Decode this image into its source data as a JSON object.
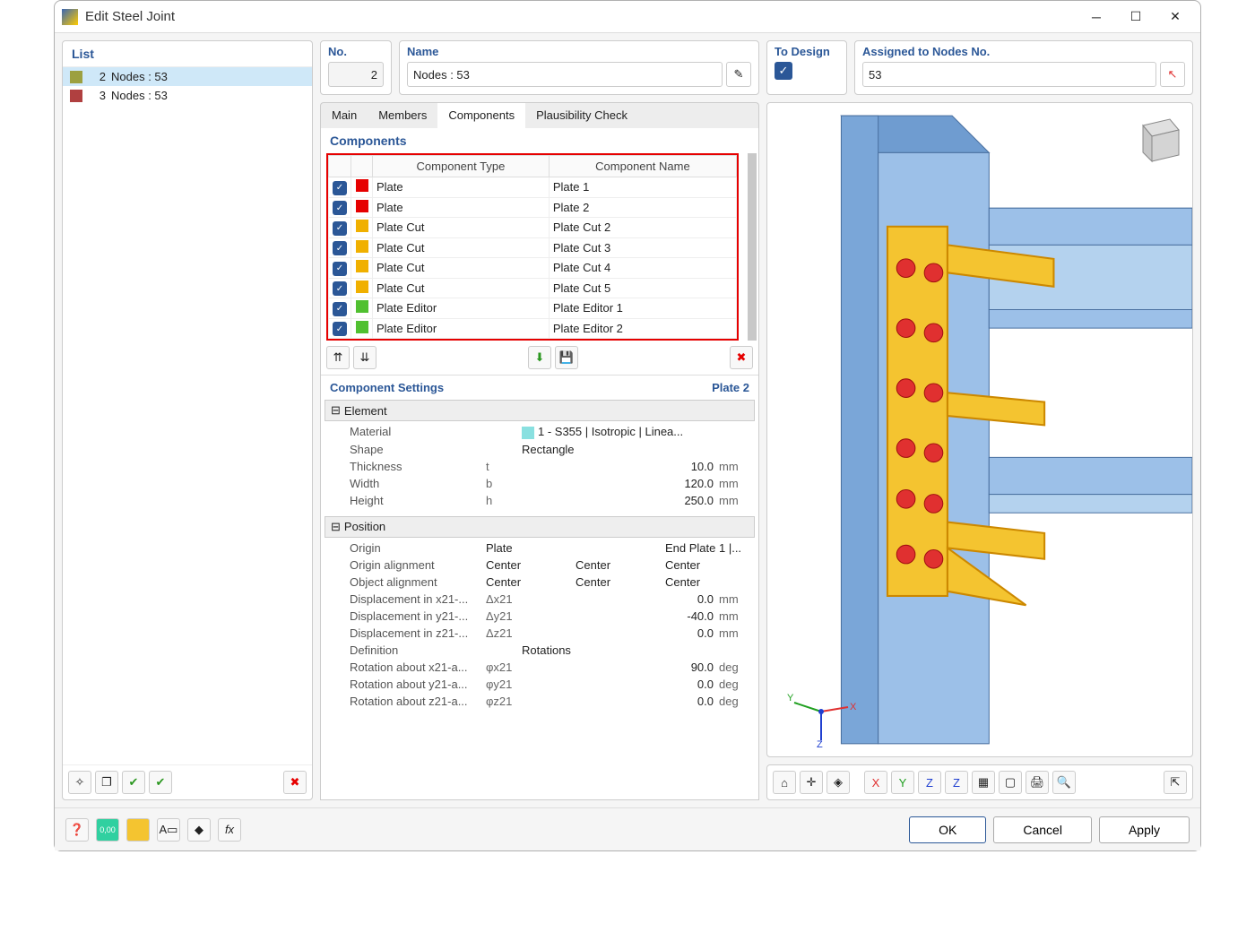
{
  "window": {
    "title": "Edit Steel Joint"
  },
  "list": {
    "header": "List",
    "items": [
      {
        "num": "2",
        "label": "Nodes : 53",
        "color": "#9ca040",
        "selected": true
      },
      {
        "num": "3",
        "label": "Nodes : 53",
        "color": "#b04040",
        "selected": false
      }
    ]
  },
  "fields": {
    "no_label": "No.",
    "no_value": "2",
    "name_label": "Name",
    "name_value": "Nodes : 53",
    "todesign_label": "To Design",
    "assigned_label": "Assigned to Nodes No.",
    "assigned_value": "53"
  },
  "tabs": {
    "items": [
      "Main",
      "Members",
      "Components",
      "Plausibility Check"
    ],
    "active": 2
  },
  "components": {
    "header": "Components",
    "col_type": "Component Type",
    "col_name": "Component Name",
    "rows": [
      {
        "color": "#e60000",
        "type": "Plate",
        "name": "Plate 1"
      },
      {
        "color": "#e60000",
        "type": "Plate",
        "name": "Plate 2"
      },
      {
        "color": "#f0b000",
        "type": "Plate Cut",
        "name": "Plate Cut 2"
      },
      {
        "color": "#f0b000",
        "type": "Plate Cut",
        "name": "Plate Cut 3"
      },
      {
        "color": "#f0b000",
        "type": "Plate Cut",
        "name": "Plate Cut 4"
      },
      {
        "color": "#f0b000",
        "type": "Plate Cut",
        "name": "Plate Cut 5"
      },
      {
        "color": "#50c030",
        "type": "Plate Editor",
        "name": "Plate Editor 1"
      },
      {
        "color": "#50c030",
        "type": "Plate Editor",
        "name": "Plate Editor 2"
      }
    ]
  },
  "settings": {
    "header": "Component Settings",
    "for": "Plate 2",
    "element_label": "Element",
    "position_label": "Position",
    "element": [
      {
        "label": "Material",
        "value": "1 - S355 | Isotropic | Linea...",
        "swatch": "#89e0e0"
      },
      {
        "label": "Shape",
        "value": "Rectangle"
      },
      {
        "label": "Thickness",
        "sym": "t",
        "value": "10.0",
        "unit": "mm"
      },
      {
        "label": "Width",
        "sym": "b",
        "value": "120.0",
        "unit": "mm"
      },
      {
        "label": "Height",
        "sym": "h",
        "value": "250.0",
        "unit": "mm"
      }
    ],
    "position": [
      {
        "label": "Origin",
        "cols": [
          "Plate",
          "",
          "End Plate 1 |..."
        ]
      },
      {
        "label": "Origin alignment",
        "cols": [
          "Center",
          "Center",
          "Center"
        ]
      },
      {
        "label": "Object alignment",
        "cols": [
          "Center",
          "Center",
          "Center"
        ]
      },
      {
        "label": "Displacement in x21-...",
        "sym": "Δx21",
        "value": "0.0",
        "unit": "mm"
      },
      {
        "label": "Displacement in y21-...",
        "sym": "Δy21",
        "value": "-40.0",
        "unit": "mm"
      },
      {
        "label": "Displacement in z21-...",
        "sym": "Δz21",
        "value": "0.0",
        "unit": "mm"
      },
      {
        "label": "Definition",
        "value": "Rotations",
        "left": true
      },
      {
        "label": "Rotation about x21-a...",
        "sym": "φx21",
        "value": "90.0",
        "unit": "deg"
      },
      {
        "label": "Rotation about y21-a...",
        "sym": "φy21",
        "value": "0.0",
        "unit": "deg"
      },
      {
        "label": "Rotation about z21-a...",
        "sym": "φz21",
        "value": "0.0",
        "unit": "deg"
      }
    ]
  },
  "footer": {
    "ok": "OK",
    "cancel": "Cancel",
    "apply": "Apply"
  },
  "viz": {
    "col_color": "#7aa6d8",
    "beam_color": "#9cc0e8",
    "plate_color": "#f4c430",
    "bolt_color": "#e03030",
    "outline": "#cc8800",
    "bg": "#ffffff"
  }
}
